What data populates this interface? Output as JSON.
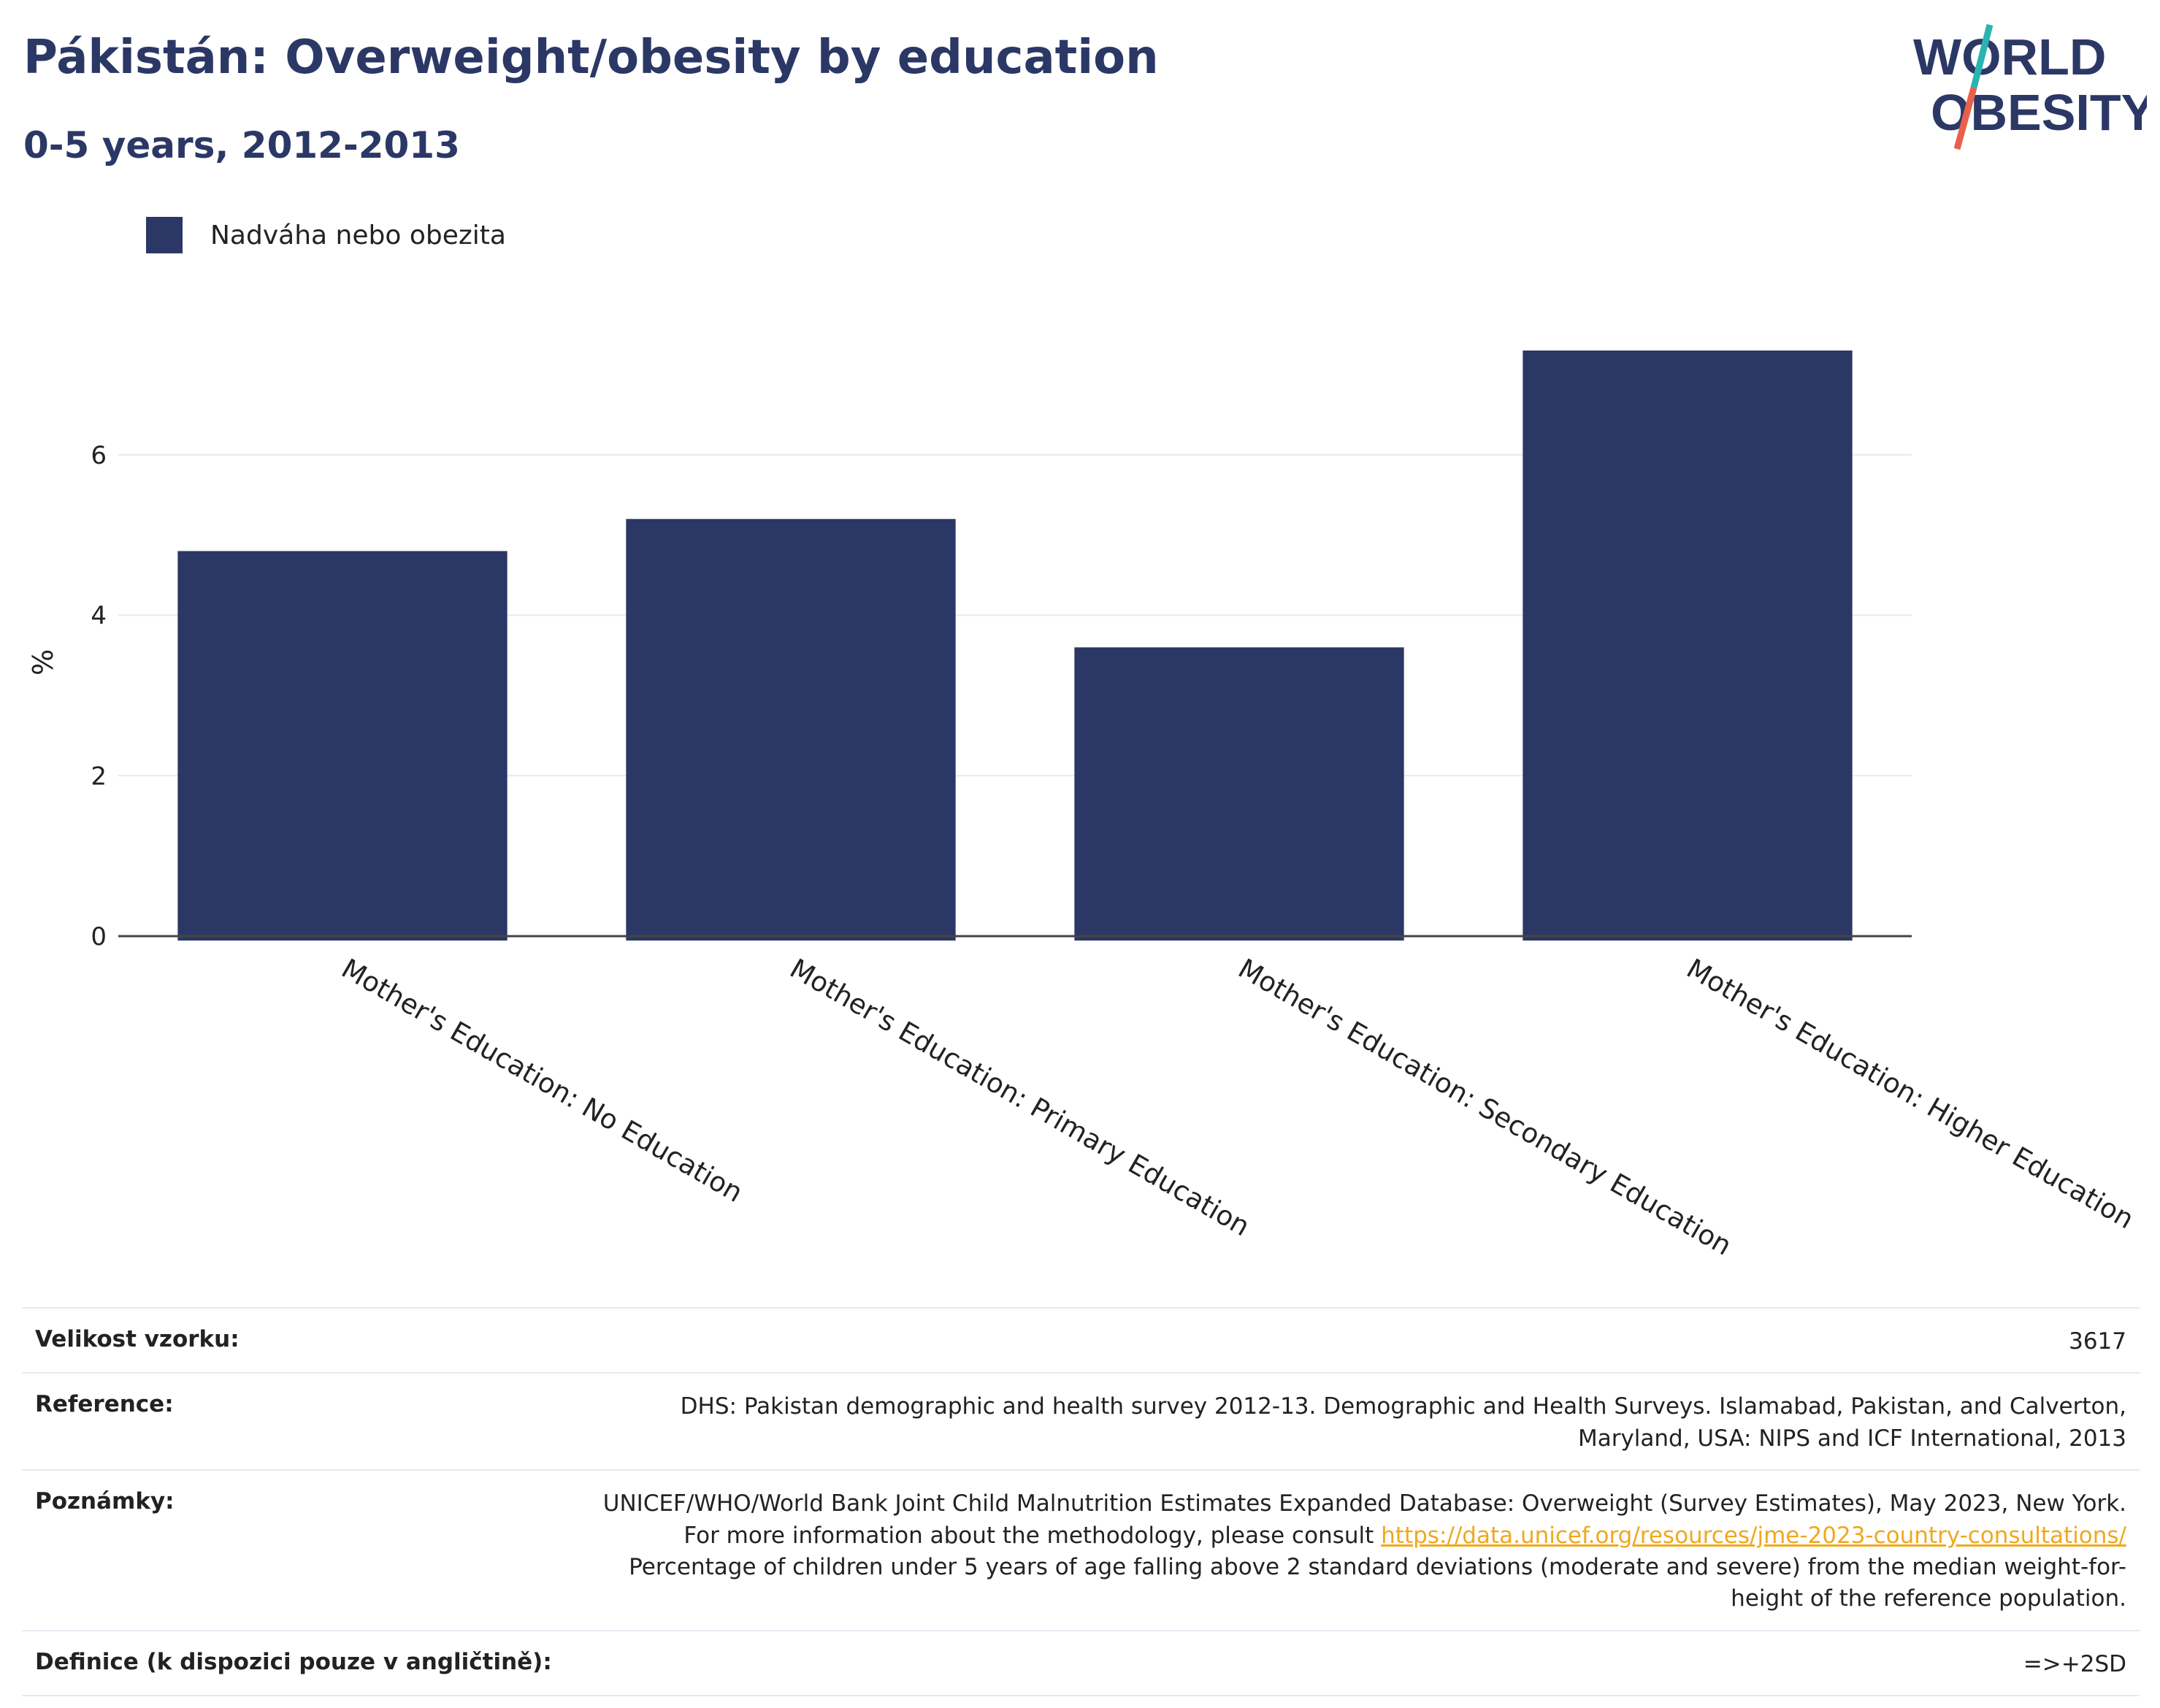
{
  "header": {
    "title": "Pákistán: Overweight/obesity by education",
    "subtitle": "0-5 years, 2012-2013"
  },
  "logo": {
    "line1": "WORLD",
    "line2": "OBESITY"
  },
  "colors": {
    "bar": "#2b3866",
    "title": "#2b3866",
    "link": "#f0a81e",
    "grid": "#e6e9f2",
    "logo_teal": "#2ab3b1",
    "logo_red": "#e8604c"
  },
  "legend": {
    "label": "Nadváha nebo obezita"
  },
  "chart_data": {
    "type": "bar",
    "categories": [
      "Mother's Education: No Education",
      "Mother's Education: Primary Education",
      "Mother's Education: Secondary Education",
      "Mother's Education: Higher Education"
    ],
    "series": [
      {
        "name": "Nadváha nebo obezita",
        "values": [
          4.8,
          5.2,
          3.6,
          7.3
        ]
      }
    ],
    "ylabel": "%",
    "yticks": [
      0,
      2,
      4,
      6
    ],
    "ylim": [
      0,
      7.3
    ],
    "grid": true
  },
  "meta": {
    "sample": {
      "label": "Velikost vzorku:",
      "value": "3617"
    },
    "reference": {
      "label": "Reference:",
      "value": "DHS: Pakistan demographic and health survey 2012-13. Demographic and Health Surveys. Islamabad, Pakistan, and Calverton, Maryland, USA: NIPS and ICF International, 2013"
    },
    "notes": {
      "label": "Poznámky:",
      "text1": "UNICEF/WHO/World Bank Joint Child Malnutrition Estimates Expanded Database: Overweight (Survey Estimates), May 2023, New York. For more information about the methodology, please consult",
      "link": "https://data.unicef.org/resources/jme-2023-country-consultations/",
      "text2": "Percentage of children under 5 years of age falling above 2 standard deviations (moderate and severe) from the median weight-for-height of the reference population."
    },
    "definition": {
      "label": "Definice (k dispozici pouze v angličtině):",
      "value": "=>+2SD"
    }
  }
}
